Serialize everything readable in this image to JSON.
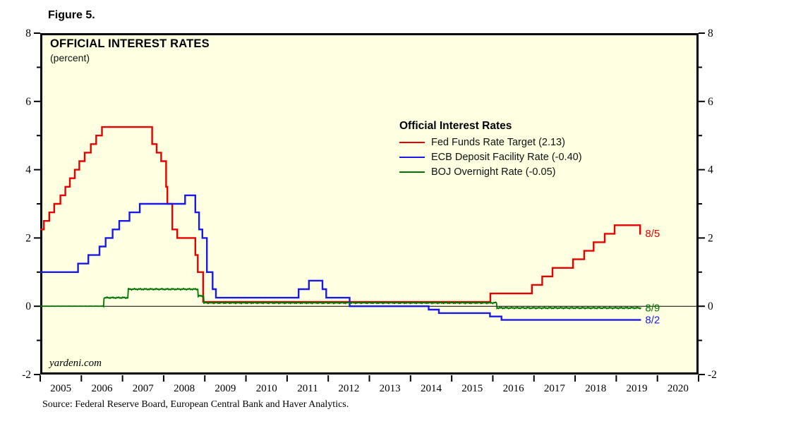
{
  "figure_label": "Figure 5.",
  "title": "OFFICIAL INTEREST RATES",
  "subtitle": "(percent)",
  "watermark": "yardeni.com",
  "source": "Source: Federal Reserve Board, European Central Bank and Haver Analytics.",
  "legend": {
    "title": "Official Interest Rates"
  },
  "chart_data": {
    "type": "line",
    "style": "step-after",
    "background": "#FFFFE1",
    "frame_color": "#000000",
    "x_range": [
      2005,
      2021
    ],
    "y_range": [
      -2,
      8
    ],
    "y_major_ticks": [
      -2,
      0,
      2,
      4,
      6,
      8
    ],
    "y_minor_ticks": [
      -1,
      1,
      3,
      5,
      7
    ],
    "x_tick_years": [
      2005,
      2006,
      2007,
      2008,
      2009,
      2010,
      2011,
      2012,
      2013,
      2014,
      2015,
      2016,
      2017,
      2018,
      2019,
      2020,
      2021
    ],
    "x_labels": [
      "2005",
      "2006",
      "2007",
      "2008",
      "2009",
      "2010",
      "2011",
      "2012",
      "2013",
      "2014",
      "2015",
      "2016",
      "2017",
      "2018",
      "2019",
      "2020"
    ],
    "zero_line": true,
    "legend_position": "inside-top-right",
    "series": [
      {
        "name": "Fed Funds Rate Target",
        "legend_label": "Fed Funds Rate Target (2.13)",
        "color": "#E80000",
        "line_width": 2.4,
        "end_label": "8/5",
        "end_x": 2019.6,
        "last_value": 2.13,
        "steps": [
          [
            2005.0,
            2.25
          ],
          [
            2005.09,
            2.5
          ],
          [
            2005.22,
            2.75
          ],
          [
            2005.34,
            3.0
          ],
          [
            2005.49,
            3.25
          ],
          [
            2005.61,
            3.5
          ],
          [
            2005.72,
            3.75
          ],
          [
            2005.84,
            4.0
          ],
          [
            2005.95,
            4.25
          ],
          [
            2006.08,
            4.5
          ],
          [
            2006.23,
            4.75
          ],
          [
            2006.36,
            5.0
          ],
          [
            2006.5,
            5.25
          ],
          [
            2007.72,
            4.75
          ],
          [
            2007.83,
            4.5
          ],
          [
            2007.94,
            4.25
          ],
          [
            2008.06,
            3.5
          ],
          [
            2008.09,
            3.0
          ],
          [
            2008.21,
            2.25
          ],
          [
            2008.33,
            2.0
          ],
          [
            2008.77,
            1.5
          ],
          [
            2008.83,
            1.0
          ],
          [
            2008.96,
            0.125
          ],
          [
            2015.94,
            0.375
          ],
          [
            2016.95,
            0.625
          ],
          [
            2017.2,
            0.875
          ],
          [
            2017.45,
            1.125
          ],
          [
            2017.95,
            1.375
          ],
          [
            2018.22,
            1.625
          ],
          [
            2018.45,
            1.875
          ],
          [
            2018.72,
            2.125
          ],
          [
            2018.96,
            2.375
          ],
          [
            2019.58,
            2.125
          ]
        ]
      },
      {
        "name": "ECB Deposit Facility Rate",
        "legend_label": "ECB Deposit Facility Rate (-0.40)",
        "color": "#1A1AE6",
        "line_width": 2.4,
        "end_label": "8/2",
        "end_x": 2019.6,
        "last_value": -0.4,
        "steps": [
          [
            2005.0,
            1.0
          ],
          [
            2005.92,
            1.25
          ],
          [
            2006.17,
            1.5
          ],
          [
            2006.44,
            1.75
          ],
          [
            2006.59,
            2.0
          ],
          [
            2006.76,
            2.25
          ],
          [
            2006.92,
            2.5
          ],
          [
            2007.17,
            2.75
          ],
          [
            2007.42,
            3.0
          ],
          [
            2008.52,
            3.25
          ],
          [
            2008.77,
            2.75
          ],
          [
            2008.86,
            2.25
          ],
          [
            2008.94,
            2.0
          ],
          [
            2009.05,
            1.0
          ],
          [
            2009.19,
            0.5
          ],
          [
            2009.27,
            0.25
          ],
          [
            2011.28,
            0.5
          ],
          [
            2011.53,
            0.75
          ],
          [
            2011.86,
            0.5
          ],
          [
            2011.95,
            0.25
          ],
          [
            2012.52,
            0.0
          ],
          [
            2014.44,
            -0.1
          ],
          [
            2014.69,
            -0.2
          ],
          [
            2015.93,
            -0.3
          ],
          [
            2016.21,
            -0.4
          ]
        ]
      },
      {
        "name": "BOJ Overnight Rate",
        "legend_label": "BOJ Overnight Rate (-0.05)",
        "color": "#007500",
        "line_width": 1.8,
        "end_label": "8/9",
        "end_x": 2019.6,
        "last_value": -0.05,
        "jitter": 0.022,
        "jitter_start": 2006.5,
        "steps": [
          [
            2005.0,
            0.002
          ],
          [
            2006.54,
            0.25
          ],
          [
            2007.13,
            0.5
          ],
          [
            2008.83,
            0.3
          ],
          [
            2008.97,
            0.1
          ],
          [
            2016.09,
            -0.05
          ]
        ]
      }
    ]
  }
}
